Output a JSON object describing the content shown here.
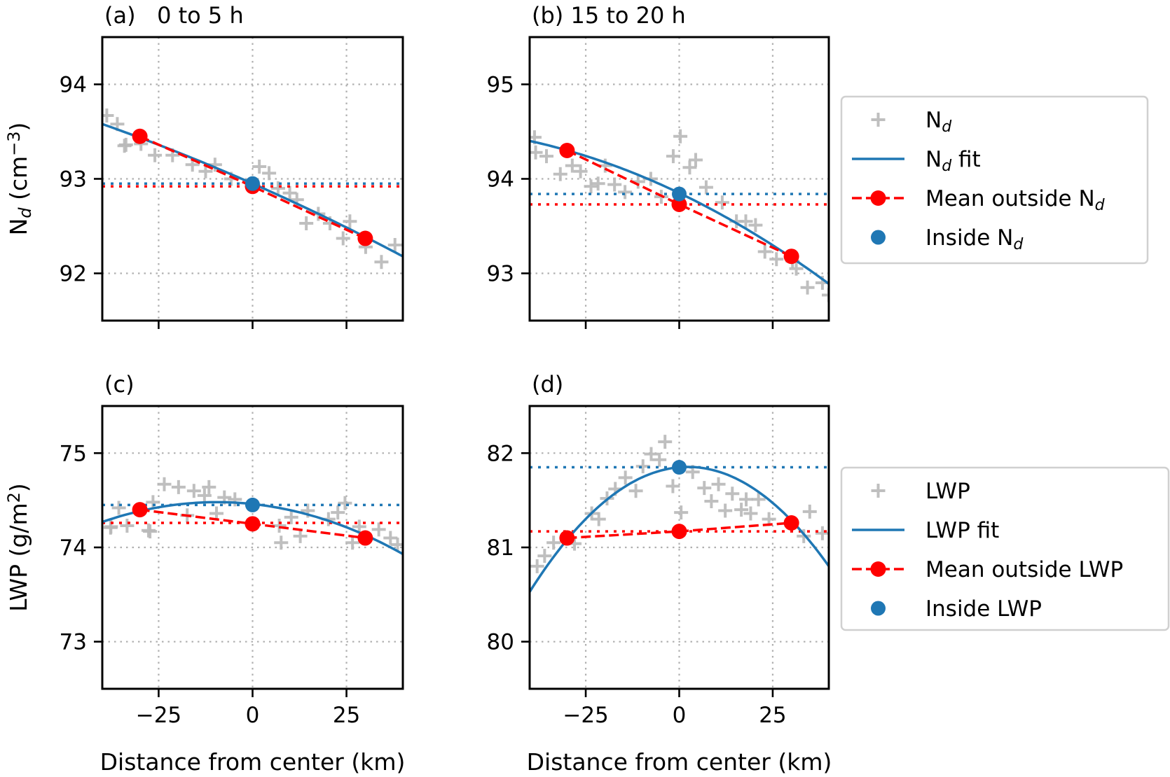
{
  "colors": {
    "scatter": "#b8b8b8",
    "fit": "#1f77b4",
    "outside": "#ff0000",
    "inside": "#1f77b4",
    "grid": "#b0b0b0"
  },
  "chart_data": [
    {
      "id": "a",
      "type": "scatter",
      "title": "(a)   0 to 5 h",
      "xlim": [
        -40,
        40
      ],
      "ylim": [
        91.5,
        94.5
      ],
      "xticks": [
        -25,
        0,
        25
      ],
      "yticks": [
        92,
        93,
        94
      ],
      "xticklabels": [
        "−25",
        "0",
        "25"
      ],
      "yticklabels": [
        "92",
        "93",
        "94"
      ],
      "show_xticklabels": false,
      "ylabel": [
        {
          "t": "N"
        },
        {
          "t": "d",
          "s": "sub"
        },
        {
          "t": " (cm"
        },
        {
          "t": "−3",
          "s": "sup"
        },
        {
          "t": ")"
        }
      ],
      "xlabel": "",
      "grid": true,
      "scatter": [
        [
          -38.8,
          93.67
        ],
        [
          -36.0,
          93.58
        ],
        [
          -34.1,
          93.35
        ],
        [
          -33.7,
          93.36
        ],
        [
          -29.7,
          93.37
        ],
        [
          -26,
          93.25
        ],
        [
          -21.3,
          93.25
        ],
        [
          -16,
          93.15
        ],
        [
          -12.5,
          93.08
        ],
        [
          -10,
          93.15
        ],
        [
          -5.7,
          93.0
        ],
        [
          1.8,
          93.13
        ],
        [
          4.4,
          93.06
        ],
        [
          6.8,
          92.9
        ],
        [
          9.9,
          92.85
        ],
        [
          11.8,
          92.78
        ],
        [
          14.3,
          92.53
        ],
        [
          17.5,
          92.63
        ],
        [
          20.6,
          92.53
        ],
        [
          25.9,
          92.55
        ],
        [
          24.1,
          92.37
        ],
        [
          30.1,
          92.28
        ],
        [
          34.3,
          92.12
        ],
        [
          37.9,
          92.3
        ]
      ],
      "fit": {
        "c0": 92.95,
        "c1": -0.0175,
        "c2": -4.38e-05
      },
      "outside": [
        [
          -30,
          93.45
        ],
        [
          0,
          92.92
        ],
        [
          30,
          92.37
        ]
      ],
      "inside": [
        0,
        92.95
      ],
      "inside_level": 92.95,
      "outside_level": 92.92
    },
    {
      "id": "b",
      "type": "scatter",
      "title": "(b) 15 to 20 h",
      "xlim": [
        -40,
        40
      ],
      "ylim": [
        92.5,
        95.5
      ],
      "xticks": [
        -25,
        0,
        25
      ],
      "yticks": [
        93,
        94,
        95
      ],
      "xticklabels": [
        "−25",
        "0",
        "25"
      ],
      "yticklabels": [
        "93",
        "94",
        "95"
      ],
      "show_xticklabels": false,
      "ylabel": [],
      "xlabel": "",
      "grid": true,
      "scatter": [
        [
          -38.7,
          94.44
        ],
        [
          -38.4,
          94.28
        ],
        [
          -35.5,
          94.24
        ],
        [
          -31.8,
          94.05
        ],
        [
          -28.6,
          94.14
        ],
        [
          -26.4,
          94.08
        ],
        [
          -23.6,
          93.92
        ],
        [
          -21.7,
          93.95
        ],
        [
          -19.8,
          94.14
        ],
        [
          -17.3,
          93.94
        ],
        [
          -14.5,
          93.86
        ],
        [
          -11,
          93.97
        ],
        [
          -7.6,
          94.0
        ],
        [
          -4.8,
          93.81
        ],
        [
          -1.6,
          94.24
        ],
        [
          0.3,
          94.45
        ],
        [
          2.8,
          94.12
        ],
        [
          4.4,
          94.2
        ],
        [
          7.2,
          93.91
        ],
        [
          11.5,
          93.75
        ],
        [
          15.3,
          93.55
        ],
        [
          17.8,
          93.55
        ],
        [
          20.4,
          93.51
        ],
        [
          22.9,
          93.23
        ],
        [
          26,
          93.15
        ],
        [
          30.3,
          93.13
        ],
        [
          31.3,
          93.05
        ],
        [
          34.3,
          92.85
        ],
        [
          38.3,
          92.9
        ],
        [
          40,
          92.77
        ]
      ],
      "fit": {
        "c0": 93.85,
        "c1": -0.0189,
        "c2": -0.000128
      },
      "outside": [
        [
          -30,
          94.3
        ],
        [
          0,
          93.73
        ],
        [
          30,
          93.18
        ]
      ],
      "inside": [
        0,
        93.84
      ],
      "inside_level": 93.84,
      "outside_level": 93.73
    },
    {
      "id": "c",
      "type": "scatter",
      "title": "(c)",
      "xlim": [
        -40,
        40
      ],
      "ylim": [
        72.5,
        75.5
      ],
      "xticks": [
        -25,
        0,
        25
      ],
      "yticks": [
        73,
        74,
        75
      ],
      "xticklabels": [
        "−25",
        "0",
        "25"
      ],
      "yticklabels": [
        "73",
        "74",
        "75"
      ],
      "show_xticklabels": true,
      "ylabel": [
        {
          "t": "LWP (g/m"
        },
        {
          "t": "2",
          "s": "sup"
        },
        {
          "t": ")"
        }
      ],
      "xlabel": "Distance from center (km)",
      "grid": true,
      "scatter": [
        [
          -37.8,
          74.21
        ],
        [
          -37.7,
          74.22
        ],
        [
          -35.6,
          74.42
        ],
        [
          -33.4,
          74.23
        ],
        [
          -27.7,
          74.18
        ],
        [
          -27.3,
          74.17
        ],
        [
          -26.5,
          74.48
        ],
        [
          -23.5,
          74.67
        ],
        [
          -19.7,
          74.64
        ],
        [
          -17.4,
          74.34
        ],
        [
          -15.6,
          74.6
        ],
        [
          -12.8,
          74.55
        ],
        [
          -11.6,
          74.64
        ],
        [
          -9.6,
          74.36
        ],
        [
          -7.5,
          74.53
        ],
        [
          -4.7,
          74.51
        ],
        [
          7.1,
          74.23
        ],
        [
          7.6,
          74.05
        ],
        [
          10.3,
          74.32
        ],
        [
          12.7,
          74.12
        ],
        [
          14.7,
          74.39
        ],
        [
          20.2,
          74.3
        ],
        [
          22.7,
          74.37
        ],
        [
          24.6,
          74.47
        ],
        [
          26.6,
          74.05
        ],
        [
          28.4,
          74.22
        ],
        [
          33.6,
          74.19
        ],
        [
          36.7,
          74.1
        ],
        [
          38.6,
          74.03
        ]
      ],
      "fit": {
        "c0": 74.46,
        "c1": -0.00425,
        "c2": -0.000225
      },
      "outside": [
        [
          -30,
          74.4
        ],
        [
          0,
          74.25
        ],
        [
          30,
          74.1
        ]
      ],
      "inside": [
        0,
        74.45
      ],
      "inside_level": 74.45,
      "outside_level": 74.26
    },
    {
      "id": "d",
      "type": "scatter",
      "title": "(d)",
      "xlim": [
        -40,
        40
      ],
      "ylim": [
        79.5,
        82.5
      ],
      "xticks": [
        -25,
        0,
        25
      ],
      "yticks": [
        80,
        81,
        82
      ],
      "xticklabels": [
        "−25",
        "0",
        "25"
      ],
      "yticklabels": [
        "80",
        "81",
        "82"
      ],
      "show_xticklabels": true,
      "ylabel": [],
      "xlabel": "Distance from center (km)",
      "grid": true,
      "scatter": [
        [
          -38,
          80.8
        ],
        [
          -36,
          80.91
        ],
        [
          -33.6,
          81.05
        ],
        [
          -28,
          81.04
        ],
        [
          -23.4,
          81.36
        ],
        [
          -21.5,
          81.3
        ],
        [
          -19.3,
          81.52
        ],
        [
          -17.1,
          81.62
        ],
        [
          -14.4,
          81.74
        ],
        [
          -11.6,
          81.6
        ],
        [
          -9.7,
          81.86
        ],
        [
          -7.5,
          81.99
        ],
        [
          -5.3,
          81.93
        ],
        [
          -3.8,
          82.12
        ],
        [
          -1.7,
          81.65
        ],
        [
          0.5,
          81.37
        ],
        [
          3.6,
          81.8
        ],
        [
          6.7,
          81.63
        ],
        [
          8.6,
          81.49
        ],
        [
          10.5,
          81.67
        ],
        [
          12.3,
          81.39
        ],
        [
          14.2,
          81.57
        ],
        [
          16.6,
          81.4
        ],
        [
          17.9,
          81.51
        ],
        [
          19.1,
          81.36
        ],
        [
          21.2,
          81.51
        ],
        [
          24,
          81.3
        ],
        [
          33.3,
          81.12
        ],
        [
          34.9,
          81.38
        ],
        [
          38.3,
          81.15
        ]
      ],
      "fit": {
        "c0": 81.85,
        "c1": 0.0034,
        "c2": -0.000741
      },
      "outside": [
        [
          -30,
          81.1
        ],
        [
          0,
          81.17
        ],
        [
          30,
          81.26
        ]
      ],
      "inside": [
        0,
        81.85
      ],
      "inside_level": 81.85,
      "outside_level": 81.17
    }
  ],
  "legends": [
    {
      "entries": [
        {
          "kind": "scatter",
          "label": [
            {
              "t": "N"
            },
            {
              "t": "d",
              "s": "sub"
            }
          ]
        },
        {
          "kind": "fit",
          "label": [
            {
              "t": "N"
            },
            {
              "t": "d",
              "s": "sub"
            },
            {
              "t": " fit"
            }
          ]
        },
        {
          "kind": "outside",
          "label": [
            {
              "t": "Mean outside N"
            },
            {
              "t": "d",
              "s": "sub"
            }
          ]
        },
        {
          "kind": "inside",
          "label": [
            {
              "t": "Inside N"
            },
            {
              "t": "d",
              "s": "sub"
            }
          ]
        }
      ]
    },
    {
      "entries": [
        {
          "kind": "scatter",
          "label": [
            {
              "t": "LWP"
            }
          ]
        },
        {
          "kind": "fit",
          "label": [
            {
              "t": "LWP fit"
            }
          ]
        },
        {
          "kind": "outside",
          "label": [
            {
              "t": "Mean outside LWP"
            }
          ]
        },
        {
          "kind": "inside",
          "label": [
            {
              "t": "Inside LWP"
            }
          ]
        }
      ]
    }
  ]
}
